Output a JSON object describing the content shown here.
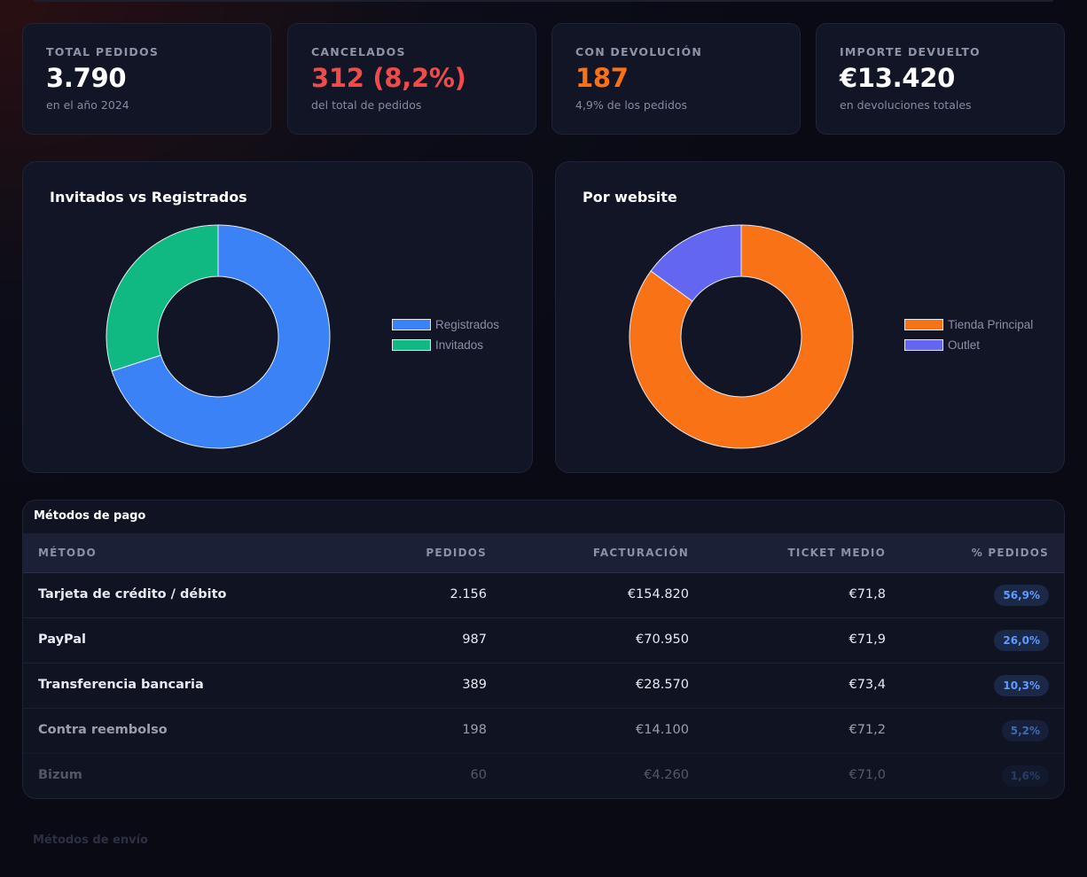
{
  "stats": [
    {
      "label": "TOTAL PEDIDOS",
      "value": "3.790",
      "sub": "en el año 2024",
      "accent": "#ffffff"
    },
    {
      "label": "CANCELADOS",
      "value": "312 (8,2%)",
      "sub": "del total de pedidos",
      "accent": "#ef4b4b"
    },
    {
      "label": "CON DEVOLUCIÓN",
      "value": "187",
      "sub": "4,9% de los pedidos",
      "accent": "#f97316"
    },
    {
      "label": "IMPORTE DEVUELTO",
      "value": "€13.420",
      "sub": "en devoluciones totales",
      "accent": "#ffffff"
    }
  ],
  "charts": {
    "guests": {
      "title": "Invitados vs Registrados"
    },
    "website": {
      "title": "Por website"
    }
  },
  "chart_data": [
    {
      "type": "pie",
      "title": "Invitados vs Registrados",
      "categories": [
        "Registrados",
        "Invitados"
      ],
      "values": [
        70,
        30
      ],
      "colors": [
        "#3b82f6",
        "#10b981"
      ],
      "legend": "right"
    },
    {
      "type": "pie",
      "title": "Por website",
      "categories": [
        "Tienda Principal",
        "Outlet"
      ],
      "values": [
        85,
        15
      ],
      "colors": [
        "#f97316",
        "#6366f1"
      ],
      "legend": "right"
    }
  ],
  "payments": {
    "title": "Métodos de pago",
    "headers": {
      "method": "MÉTODO",
      "orders": "PEDIDOS",
      "revenue": "FACTURACIÓN",
      "ticket": "TICKET MEDIO",
      "pct": "% PEDIDOS"
    },
    "rows": [
      {
        "method": "Tarjeta de crédito / débito",
        "orders": "2.156",
        "revenue": "€154.820",
        "ticket": "€71,8",
        "pct": "56,9%"
      },
      {
        "method": "PayPal",
        "orders": "987",
        "revenue": "€70.950",
        "ticket": "€71,9",
        "pct": "26,0%"
      },
      {
        "method": "Transferencia bancaria",
        "orders": "389",
        "revenue": "€28.570",
        "ticket": "€73,4",
        "pct": "10,3%"
      },
      {
        "method": "Contra reembolso",
        "orders": "198",
        "revenue": "€14.100",
        "ticket": "€71,2",
        "pct": "5,2%"
      },
      {
        "method": "Bizum",
        "orders": "60",
        "revenue": "€4.260",
        "ticket": "€71,0",
        "pct": "1,6%"
      }
    ]
  },
  "shipping": {
    "title": "Métodos de envío"
  }
}
